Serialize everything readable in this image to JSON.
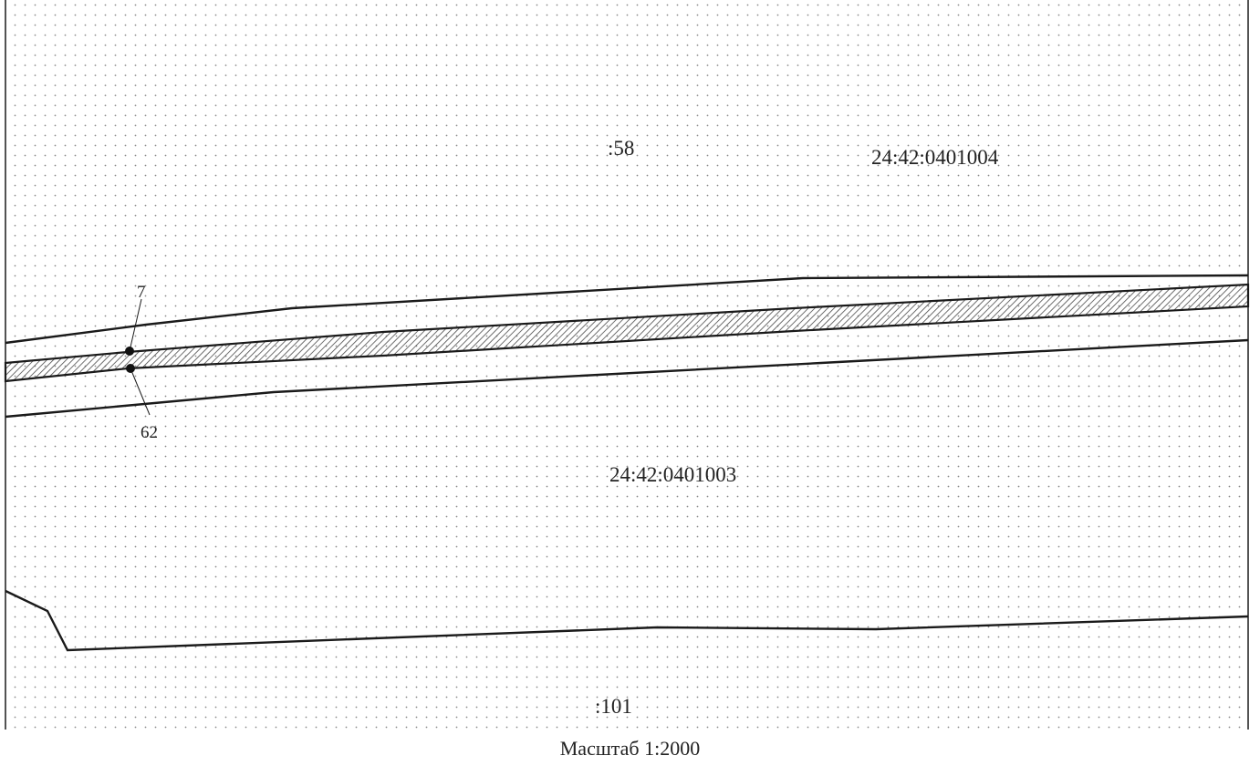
{
  "map": {
    "parcel_labels": {
      "parcel_58": ":58",
      "parcel_101": ":101"
    },
    "block_labels": {
      "block_north": "24:42:0401004",
      "block_south": "24:42:0401003"
    },
    "point_labels": {
      "point_7": "7",
      "point_62": "62"
    },
    "scale_caption": "Масштаб 1:2000",
    "colors": {
      "line": "#1a1a1a",
      "dot_grid": "#8a8a8a",
      "hatch": "#4a4a4a",
      "background": "#ffffff"
    }
  }
}
